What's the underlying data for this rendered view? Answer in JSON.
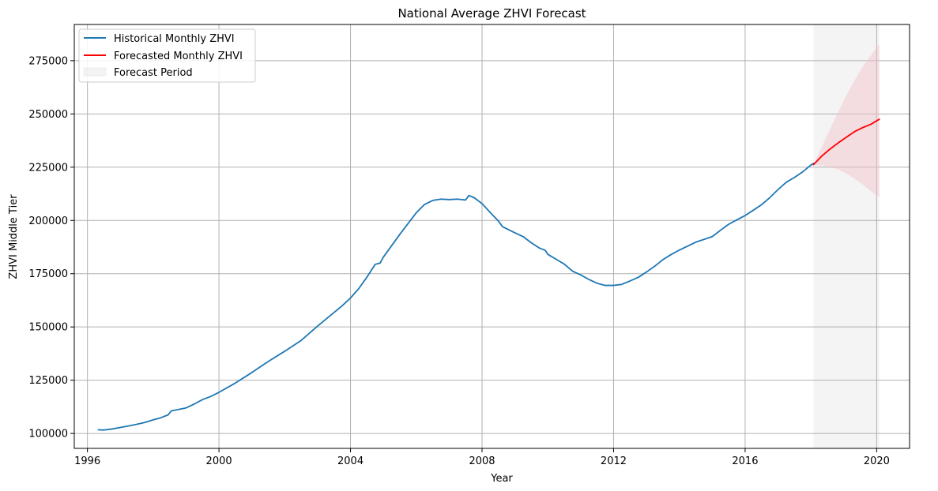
{
  "chart_data": {
    "type": "line",
    "title": "National Average ZHVI Forecast",
    "xlabel": "Year",
    "ylabel": "ZHVI Middle Tier",
    "xlim": [
      1995.6,
      2021.0
    ],
    "ylim": [
      93000,
      292000
    ],
    "x_ticks": [
      1996,
      2000,
      2004,
      2008,
      2012,
      2016,
      2020
    ],
    "x_tick_labels": [
      "1996",
      "2000",
      "2004",
      "2008",
      "2012",
      "2016",
      "2020"
    ],
    "y_ticks": [
      100000,
      125000,
      150000,
      175000,
      200000,
      225000,
      250000,
      275000
    ],
    "y_tick_labels": [
      "100000",
      "125000",
      "150000",
      "175000",
      "200000",
      "225000",
      "250000",
      "275000"
    ],
    "grid": true,
    "legend_position": "top-left",
    "colors": {
      "historical": "#1f77b4",
      "forecast": "#ff0000",
      "interval": "#f4c2c9",
      "period": "#d9d9d9"
    },
    "forecast_period": [
      2018.08,
      2020.08
    ],
    "series": [
      {
        "name": "Historical Monthly ZHVI",
        "x": [
          1996.33,
          1996.5,
          1996.75,
          1997.0,
          1997.25,
          1997.5,
          1997.75,
          1998.0,
          1998.2,
          1998.45,
          1998.55,
          1998.75,
          1999.0,
          1999.25,
          1999.5,
          1999.75,
          2000.0,
          2000.5,
          2001.0,
          2001.5,
          2002.0,
          2002.5,
          2003.0,
          2003.5,
          2003.75,
          2004.0,
          2004.25,
          2004.5,
          2004.75,
          2004.9,
          2005.0,
          2005.5,
          2006.0,
          2006.25,
          2006.5,
          2006.75,
          2007.0,
          2007.25,
          2007.5,
          2007.6,
          2007.75,
          2008.0,
          2008.25,
          2008.5,
          2008.62,
          2008.75,
          2009.0,
          2009.25,
          2009.5,
          2009.75,
          2009.92,
          2010.0,
          2010.25,
          2010.5,
          2010.75,
          2011.0,
          2011.25,
          2011.5,
          2011.75,
          2012.0,
          2012.25,
          2012.5,
          2012.75,
          2013.0,
          2013.25,
          2013.5,
          2013.75,
          2014.0,
          2014.5,
          2015.0,
          2015.25,
          2015.5,
          2015.75,
          2016.0,
          2016.25,
          2016.5,
          2016.75,
          2017.0,
          2017.25,
          2017.5,
          2017.75,
          2018.0,
          2018.08
        ],
        "values": [
          101700,
          101600,
          102100,
          102800,
          103500,
          104300,
          105200,
          106400,
          107200,
          108700,
          110600,
          111200,
          112000,
          113800,
          115900,
          117400,
          119300,
          123700,
          128600,
          133800,
          138600,
          143700,
          150400,
          156800,
          160000,
          163600,
          168000,
          173400,
          179400,
          180000,
          182800,
          193500,
          203600,
          207500,
          209400,
          210000,
          209800,
          210000,
          209600,
          211700,
          210800,
          207900,
          203700,
          199700,
          197100,
          196100,
          194200,
          192400,
          189500,
          187000,
          186000,
          184100,
          181800,
          179500,
          176200,
          174400,
          172300,
          170500,
          169500,
          169500,
          170000,
          171600,
          173300,
          175800,
          178500,
          181600,
          184000,
          186100,
          189800,
          192400,
          195400,
          198200,
          200300,
          202300,
          204800,
          207400,
          210700,
          214500,
          217900,
          220200,
          222800,
          226000,
          226800
        ]
      },
      {
        "name": "Forecasted Monthly ZHVI",
        "x": [
          2018.08,
          2018.33,
          2018.58,
          2018.83,
          2019.08,
          2019.33,
          2019.58,
          2019.83,
          2020.08
        ],
        "values": [
          226200,
          230200,
          233500,
          236400,
          239100,
          241700,
          243600,
          245200,
          247500
        ],
        "lower": [
          226000,
          225900,
          225100,
          223900,
          222000,
          219600,
          216800,
          213600,
          210800
        ],
        "upper": [
          226400,
          234500,
          242800,
          250900,
          258700,
          265900,
          272400,
          277600,
          283000
        ]
      }
    ],
    "legend": [
      {
        "name": "Historical Monthly ZHVI"
      },
      {
        "name": "Forecasted Monthly ZHVI"
      },
      {
        "name": "Forecast Period"
      }
    ]
  }
}
